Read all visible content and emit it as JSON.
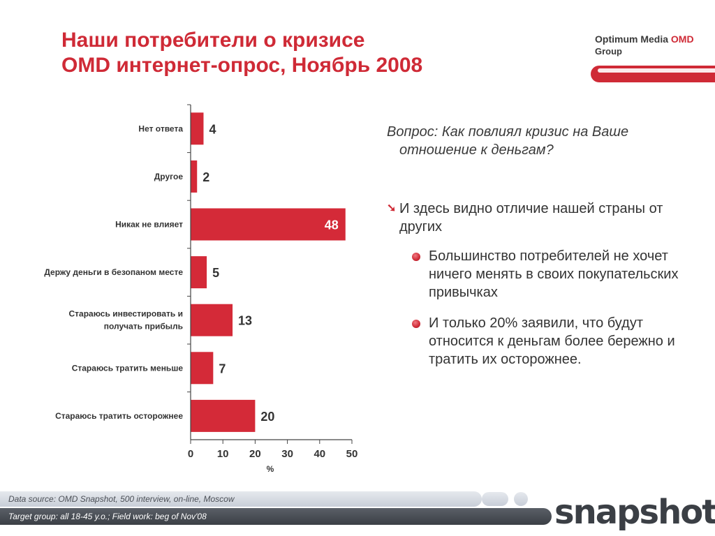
{
  "title": {
    "line1": "Наши потребители о кризисе",
    "line2": "OMD интернет-опрос, Ноябрь 2008"
  },
  "logo": {
    "line1_prefix": "Optimum Media ",
    "line1_brand": "OMD",
    "line2": "Group"
  },
  "question": {
    "line1": "Вопрос: Как повлиял кризис на Ваше",
    "line2": "отношение к деньгам?"
  },
  "point": {
    "arrow": "➘",
    "text": "И здесь видно отличие нашей страны от других"
  },
  "bullets": [
    "Большинство потребителей не хочет ничего менять в своих покупательских привычках",
    "И только 20% заявили, что будут относится к деньгам более бережно и тратить их осторожнее."
  ],
  "footer": {
    "source": "Data source: OMD Snapshot, 500 interview, on-line, Moscow",
    "target": "Target group: all 18-45 y.o.; Field work: beg of Nov'08",
    "brand": "snapshots"
  },
  "colors": {
    "accent": "#cf2a36",
    "bar": "#d42a38"
  },
  "chart_data": {
    "type": "bar",
    "orientation": "horizontal",
    "categories": [
      [
        "Нет ответа"
      ],
      [
        "Другое"
      ],
      [
        "Никак не влияет"
      ],
      [
        "Держу деньги в безопаном месте"
      ],
      [
        "Стараюсь инвестировать и",
        "получать прибыль"
      ],
      [
        "Стараюсь тратить меньше"
      ],
      [
        "Стараюсь тратить осторожнее"
      ]
    ],
    "values": [
      4,
      2,
      48,
      5,
      13,
      7,
      20
    ],
    "xlim": [
      0,
      50
    ],
    "xticks": [
      0,
      10,
      20,
      30,
      40,
      50
    ],
    "xlabel": "%",
    "grid": false
  }
}
